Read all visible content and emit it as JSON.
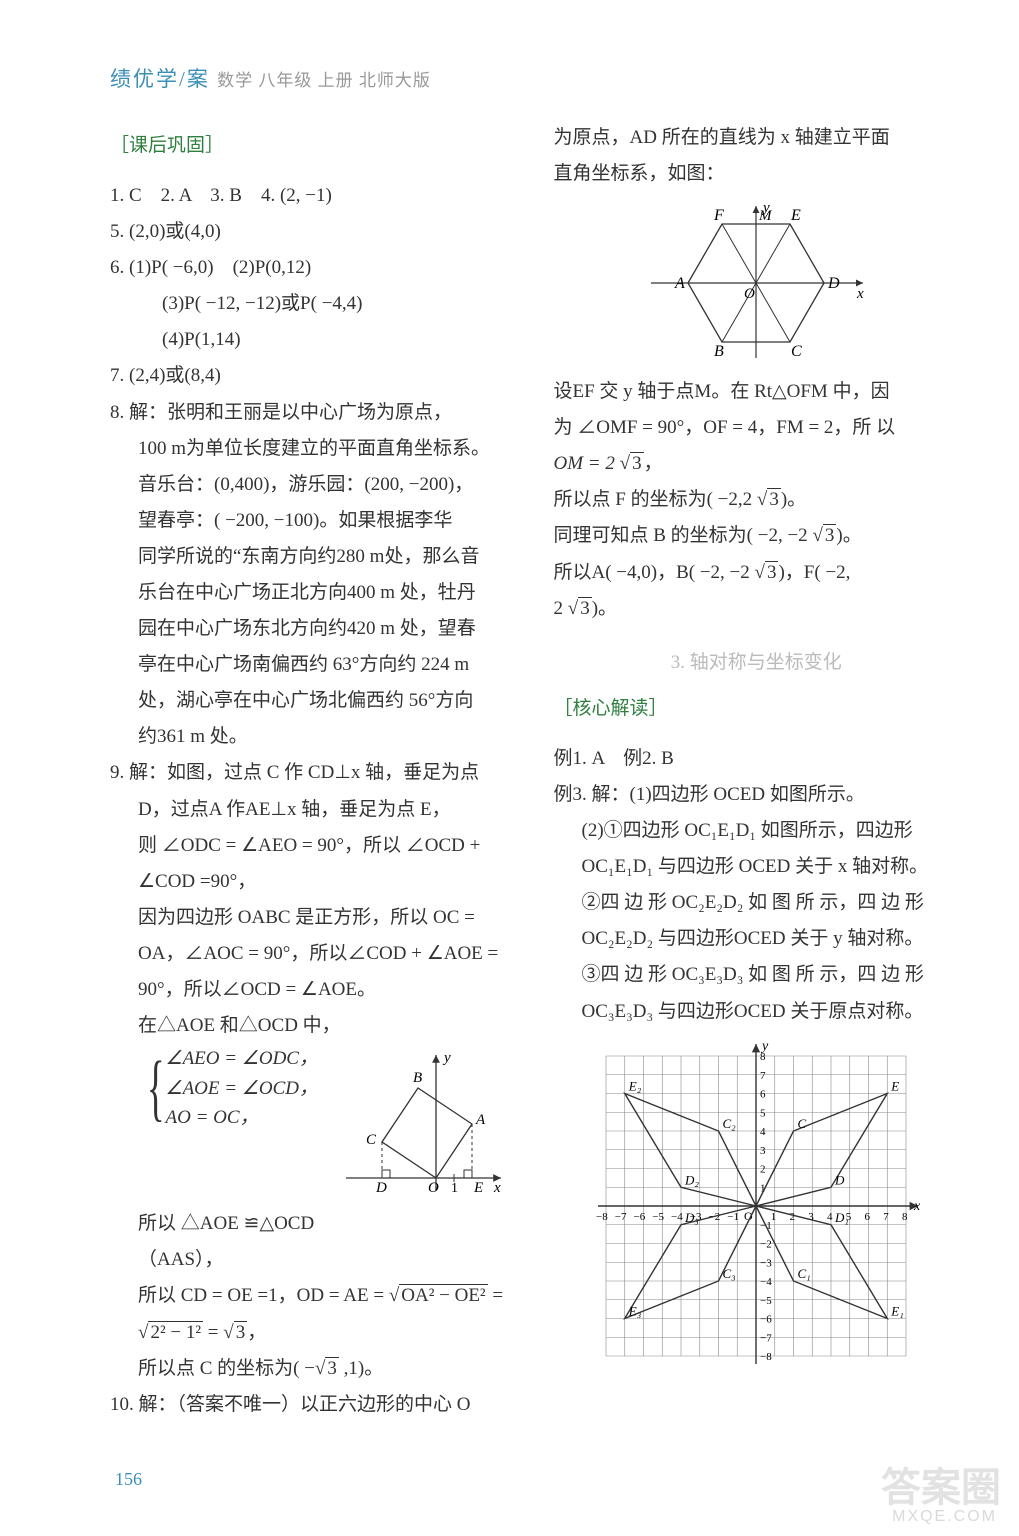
{
  "header": {
    "title": "绩优学/案",
    "sub": "数学  八年级  上册  北师大版"
  },
  "left": {
    "sect": "［课后巩固］",
    "l1": "1. C　2. A　3. B　4. (2, −1)",
    "l5": "5. (2,0)或(4,0)",
    "l6a": "6. (1)P( −6,0)　(2)P(0,12)",
    "l6b": "(3)P( −12, −12)或P( −4,4)",
    "l6c": "(4)P(1,14)",
    "l7": "7. (2,4)或(8,4)",
    "l8a": "8. 解：张明和王丽是以中心广场为原点，",
    "l8b": "100 m为单位长度建立的平面直角坐标系。",
    "l8c": "音乐台：(0,400)，游乐园：(200, −200)，",
    "l8d": "望春亭：( −200, −100)。如果根据李华",
    "l8e": "同学所说的“东南方向约280 m处，那么音",
    "l8f": "乐台在中心广场正北方向400 m 处，牡丹",
    "l8g": "园在中心广场东北方向约420 m 处，望春",
    "l8h": "亭在中心广场南偏西约 63°方向约 224 m",
    "l8i": "处，湖心亭在中心广场北偏西约 56°方向",
    "l8j": "约361 m 处。",
    "l9a": "9. 解：如图，过点 C 作 CD⊥x 轴，垂足为点",
    "l9b": "D，过点A 作AE⊥x 轴，垂足为点 E，",
    "l9c": "则 ∠ODC = ∠AEO = 90°，所以 ∠OCD +",
    "l9d": "∠COD =90°，",
    "l9e": "因为四边形 OABC 是正方形，所以 OC =",
    "l9f": "OA，∠AOC = 90°，所以∠COD + ∠AOE =",
    "l9g": "90°，所以∠OCD = ∠AOE。",
    "l9h": "在△AOE 和△OCD 中，",
    "brace1": "∠AEO = ∠ODC，",
    "brace2": "∠AOE = ∠OCD，",
    "brace3": "AO = OC，",
    "l9i": "所以 △AOE ≌△OCD",
    "l9j": "（AAS），",
    "l9k_a": "所以 CD = OE =1，OD = AE = ",
    "l9k_rad1": "OA² − OE²",
    "l9m_rad": "2² − 1²",
    "l9m_b": " = ",
    "l9m_rad2": "3",
    "l9m_c": "，",
    "l9n_a": "所以点 C 的坐标为( −",
    "rad3": "3",
    "l9n_b": " ,1)。",
    "l10": "10. 解：（答案不唯一）以正六边形的中心 O"
  },
  "right": {
    "r1": "为原点，AD 所在的直线为 x 轴建立平面",
    "r2": "直角坐标系，如图：",
    "r3": "设EF 交 y 轴于点M。在 Rt△OFM 中，因",
    "r4": "为 ∠OMF = 90°，OF = 4，FM = 2，所 以",
    "r5a": "OM = 2 ",
    "rad3a": "3",
    "r5b": "，",
    "r6a": "所以点 F 的坐标为( −2,2 ",
    "rad3b": "3",
    "r6b": ")。",
    "r7a": "同理可知点 B 的坐标为( −2, −2 ",
    "rad3c": "3",
    "r7b": ")。",
    "r8a": "所以A( −4,0)，B( −2, −2 ",
    "rad3d": "3",
    "r8b": ")，F( −2,",
    "r9a": "2 ",
    "rad3e": "3",
    "r9b": ")。",
    "sec2": "3. 轴对称与坐标变化",
    "sect2": "［核心解读］",
    "ex12": "例1. A　例2. B",
    "ex3a": "例3. 解：(1)四边形 OCED 如图所示。",
    "ex3b": "(2)①四边形 OC₁E₁D₁ 如图所示，四边形",
    "ex3c": "OC₁E₁D₁ 与四边形 OCED 关于 x 轴对称。",
    "ex3d": "②四 边 形 OC₂E₂D₂ 如 图 所 示，四 边 形",
    "ex3e": "OC₂E₂D₂ 与四边形OCED 关于 y 轴对称。",
    "ex3f": "③四 边 形 OC₃E₃D₃ 如 图 所 示，四 边 形",
    "ex3g": "OC₃E₃D₃ 与四边形OCED 关于原点对称。"
  },
  "figures": {
    "hex": {
      "labels": {
        "A": "A",
        "B": "B",
        "C": "C",
        "D": "D",
        "E": "E",
        "F": "F",
        "M": "M",
        "O": "O",
        "x": "x",
        "y": "y"
      },
      "stroke": "#333333"
    },
    "square": {
      "labels": {
        "A": "A",
        "B": "B",
        "C": "C",
        "D": "D",
        "E": "E",
        "O": "O",
        "x": "x",
        "y": "y",
        "one": "1"
      },
      "stroke": "#333333"
    },
    "grid": {
      "range": 8,
      "stroke": "#7a7a7a",
      "labels": {
        "x": "x",
        "y": "y"
      },
      "ptlabels": [
        "E",
        "C",
        "D"
      ]
    }
  },
  "page": "156",
  "watermark": "答案圈",
  "watermark2": "MXQE.COM"
}
